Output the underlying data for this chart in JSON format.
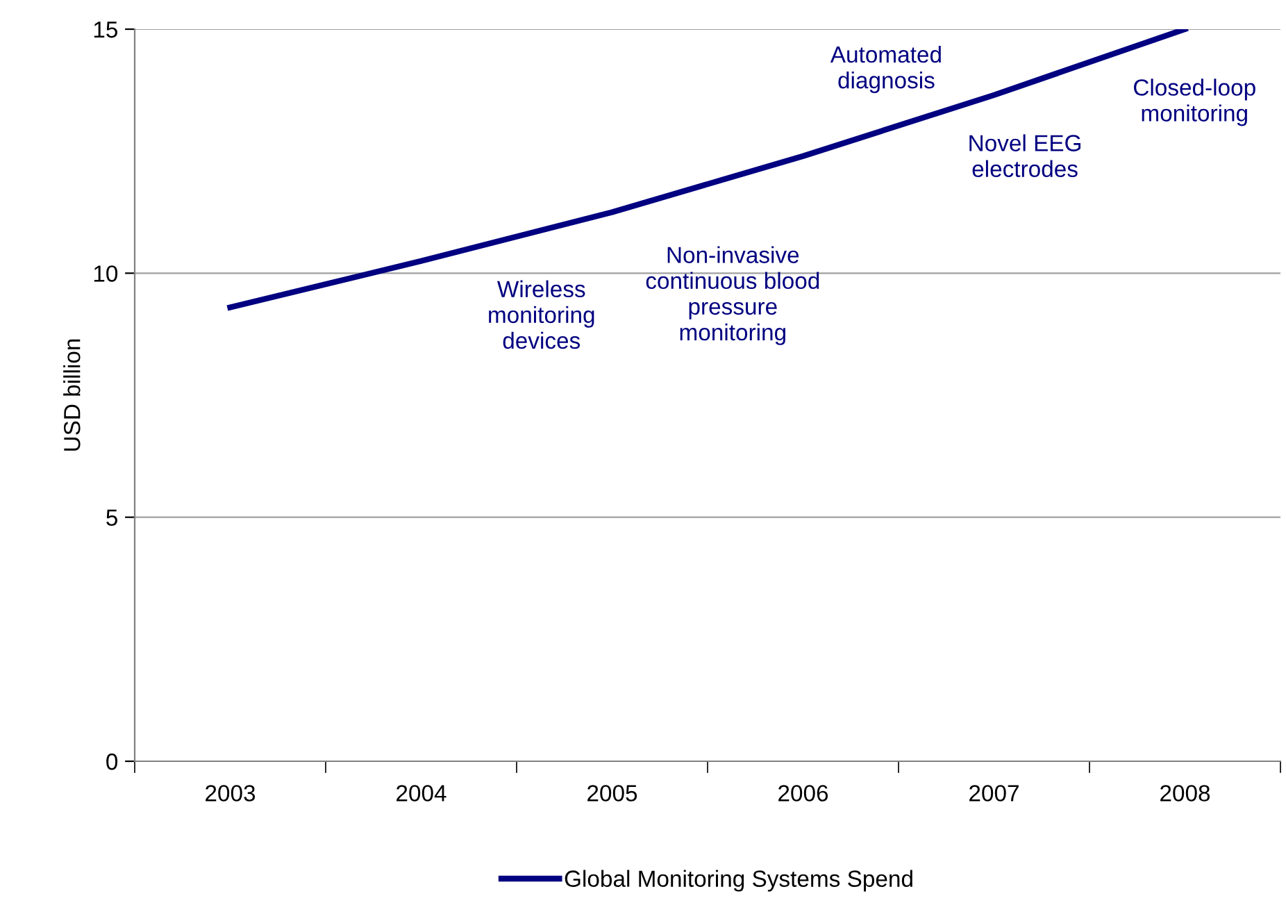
{
  "chart_data": {
    "type": "line",
    "ylabel": "USD billion",
    "categories": [
      "2003",
      "2004",
      "2005",
      "2006",
      "2007",
      "2008"
    ],
    "series": [
      {
        "name": "Global Monitoring Systems Spend",
        "color": "#000080",
        "values": [
          9.3,
          10.25,
          11.25,
          12.4,
          13.65,
          15.0
        ]
      }
    ],
    "ylim": [
      0,
      15
    ],
    "yticks": [
      0,
      5,
      10,
      15
    ],
    "grid": "y",
    "legend": "bottom",
    "line_style": "solid",
    "annotations": [
      "Wireless\nmonitoring\ndevices",
      "Non-invasive\ncontinuous blood\npressure\nmonitoring",
      "Automated\ndiagnosis",
      "Novel EEG\nelectrodes",
      "Closed-loop\nmonitoring"
    ]
  }
}
